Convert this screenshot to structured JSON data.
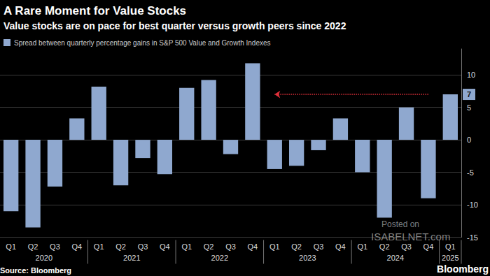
{
  "chart_data": {
    "type": "bar",
    "title": "A Rare Moment for Value Stocks",
    "subtitle": "Value stocks are on pace for best quarter versus growth peers since 2022",
    "categories": [
      "Q1",
      "Q2",
      "Q3",
      "Q4",
      "Q1",
      "Q2",
      "Q3",
      "Q4",
      "Q1",
      "Q2",
      "Q3",
      "Q4",
      "Q1",
      "Q2",
      "Q3",
      "Q4",
      "Q1",
      "Q2",
      "Q3",
      "Q4",
      "Q1"
    ],
    "year_labels": [
      "2020",
      "2021",
      "2022",
      "2023",
      "2024",
      "2025"
    ],
    "series": [
      {
        "name": "Spread between quarterly percentage gains in S&P 500 Value and Growth Indexes",
        "color": "#8fa8cf",
        "values": [
          -11,
          -13.5,
          -7.2,
          3.3,
          8.2,
          -7,
          -2.8,
          -5.3,
          8,
          9.2,
          -2.2,
          11.8,
          -4.5,
          -4,
          -1.6,
          3.3,
          -5,
          -12,
          5,
          -9,
          7
        ]
      }
    ],
    "ylim": [
      -15,
      14
    ],
    "yticks": [
      -15,
      -10,
      -5,
      0,
      5,
      10
    ],
    "grid": true,
    "legend": "upper left",
    "annotations": [
      {
        "text": "7",
        "value": 7
      }
    ],
    "source": "Source: Bloomberg",
    "logo": "Bloomberg",
    "watermark": [
      "Posted on",
      "ISABELNET.com"
    ]
  }
}
